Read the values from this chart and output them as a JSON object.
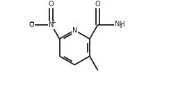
{
  "bg_color": "#ffffff",
  "line_color": "#1a1a1a",
  "line_width": 1.3,
  "dbo": 0.018,
  "font_size": 7.0,
  "font_size_sub": 5.0,
  "figsize": [
    2.43,
    1.33
  ],
  "dpi": 100,
  "xlim": [
    0.0,
    1.0
  ],
  "ylim": [
    0.05,
    0.95
  ]
}
